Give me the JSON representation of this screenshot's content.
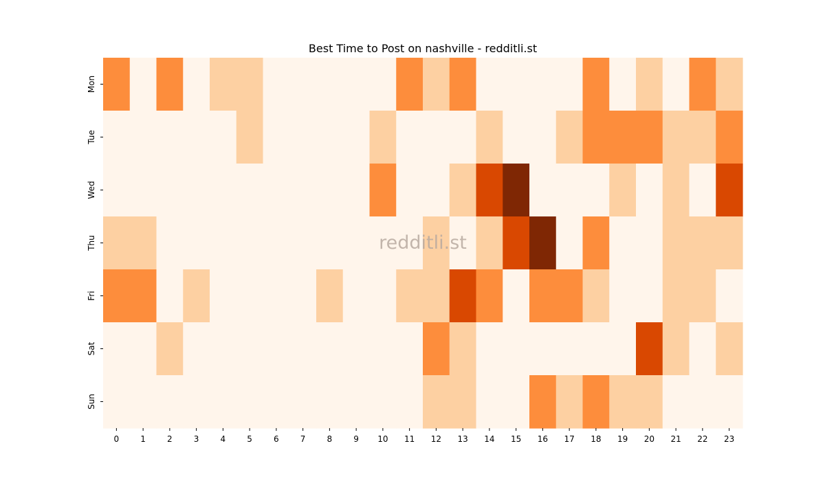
{
  "chart_data": {
    "type": "heatmap",
    "title": "Best Time to Post on nashville - redditli.st",
    "watermark": "redditli.st",
    "xlabel": "",
    "ylabel": "",
    "x": [
      "0",
      "1",
      "2",
      "3",
      "4",
      "5",
      "6",
      "7",
      "8",
      "9",
      "10",
      "11",
      "12",
      "13",
      "14",
      "15",
      "16",
      "17",
      "18",
      "19",
      "20",
      "21",
      "22",
      "23"
    ],
    "y": [
      "Mon",
      "Tue",
      "Wed",
      "Thu",
      "Fri",
      "Sat",
      "Sun"
    ],
    "levels": 5,
    "values": [
      [
        2,
        0,
        2,
        0,
        1,
        1,
        0,
        0,
        0,
        0,
        0,
        2,
        1,
        2,
        0,
        0,
        0,
        0,
        2,
        0,
        1,
        0,
        2,
        1
      ],
      [
        0,
        0,
        0,
        0,
        0,
        1,
        0,
        0,
        0,
        0,
        1,
        0,
        0,
        0,
        1,
        0,
        0,
        1,
        2,
        2,
        2,
        1,
        1,
        2
      ],
      [
        0,
        0,
        0,
        0,
        0,
        0,
        0,
        0,
        0,
        0,
        2,
        0,
        0,
        1,
        3,
        4,
        0,
        0,
        0,
        1,
        0,
        1,
        0,
        3
      ],
      [
        1,
        1,
        0,
        0,
        0,
        0,
        0,
        0,
        0,
        0,
        0,
        0,
        1,
        0,
        1,
        3,
        4,
        0,
        2,
        0,
        0,
        1,
        1,
        1
      ],
      [
        2,
        2,
        0,
        1,
        0,
        0,
        0,
        0,
        1,
        0,
        0,
        1,
        1,
        3,
        2,
        0,
        2,
        2,
        1,
        0,
        0,
        1,
        1,
        0
      ],
      [
        0,
        0,
        1,
        0,
        0,
        0,
        0,
        0,
        0,
        0,
        0,
        0,
        2,
        1,
        0,
        0,
        0,
        0,
        0,
        0,
        3,
        1,
        0,
        1
      ],
      [
        0,
        0,
        0,
        0,
        0,
        0,
        0,
        0,
        0,
        0,
        0,
        0,
        1,
        1,
        0,
        0,
        2,
        1,
        2,
        1,
        1,
        0,
        0,
        0
      ]
    ],
    "colors": [
      "#fff5eb",
      "#fdd0a2",
      "#fd8d3c",
      "#d94801",
      "#7f2704"
    ],
    "grid": false,
    "legend": "none"
  }
}
